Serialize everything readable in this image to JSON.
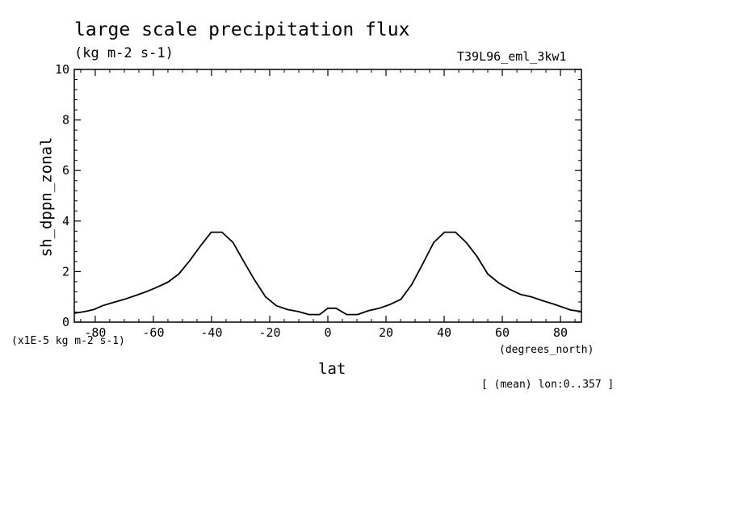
{
  "chart_data": {
    "type": "line",
    "title": "large scale precipitation flux",
    "units": "(kg m-2 s-1)",
    "run_id": "T39L96_eml_3kw1",
    "scale_note": "(x1E-5 kg m-2 s-1)",
    "xlabel": "lat",
    "xunits": "(degrees_north)",
    "ylabel": "sh_dppn_zonal",
    "averaging_note": "[ (mean) lon:0..357 ]",
    "xlim": [
      -87.2,
      87.2
    ],
    "ylim": [
      0,
      10
    ],
    "x_ticks": [
      -80,
      -60,
      -40,
      -20,
      0,
      20,
      40,
      60,
      80
    ],
    "x_tick_labels": [
      "-80",
      "-60",
      "-40",
      "-20",
      "0",
      "20",
      "40",
      "60",
      "80"
    ],
    "y_ticks": [
      0,
      2,
      4,
      6,
      8,
      10
    ],
    "y_tick_labels": [
      "0",
      "2",
      "4",
      "6",
      "8",
      "10"
    ],
    "x_minor_step": 5,
    "y_minor_step": 0.4,
    "series": [
      {
        "x": [
          -87.2,
          -83.5,
          -80.5,
          -77.5,
          -73.8,
          -70,
          -66.2,
          -62.5,
          -58.8,
          -55,
          -51.3,
          -47.6,
          -43.9,
          -40.1,
          -36.4,
          -32.6,
          -28.9,
          -25.1,
          -21.4,
          -17.7,
          -13.9,
          -10.2,
          -6.5,
          -2.8,
          0,
          2.8,
          6.5,
          10.2,
          13.9,
          17.7,
          21.4,
          25.1,
          28.9,
          32.6,
          36.4,
          40.1,
          43.9,
          47.6,
          51.3,
          55,
          58.8,
          62.5,
          66.2,
          70,
          73.8,
          77.5,
          80.5,
          83.5,
          87.2
        ],
        "y": [
          0.35,
          0.42,
          0.5,
          0.65,
          0.78,
          0.9,
          1.05,
          1.2,
          1.38,
          1.58,
          1.9,
          2.42,
          3.0,
          3.56,
          3.56,
          3.15,
          2.4,
          1.65,
          1.0,
          0.65,
          0.5,
          0.42,
          0.3,
          0.3,
          0.55,
          0.55,
          0.3,
          0.3,
          0.45,
          0.55,
          0.7,
          0.9,
          1.5,
          2.3,
          3.15,
          3.56,
          3.56,
          3.15,
          2.6,
          1.9,
          1.55,
          1.3,
          1.1,
          1.0,
          0.85,
          0.72,
          0.6,
          0.48,
          0.42
        ]
      }
    ],
    "grid": false,
    "legend": "none"
  }
}
